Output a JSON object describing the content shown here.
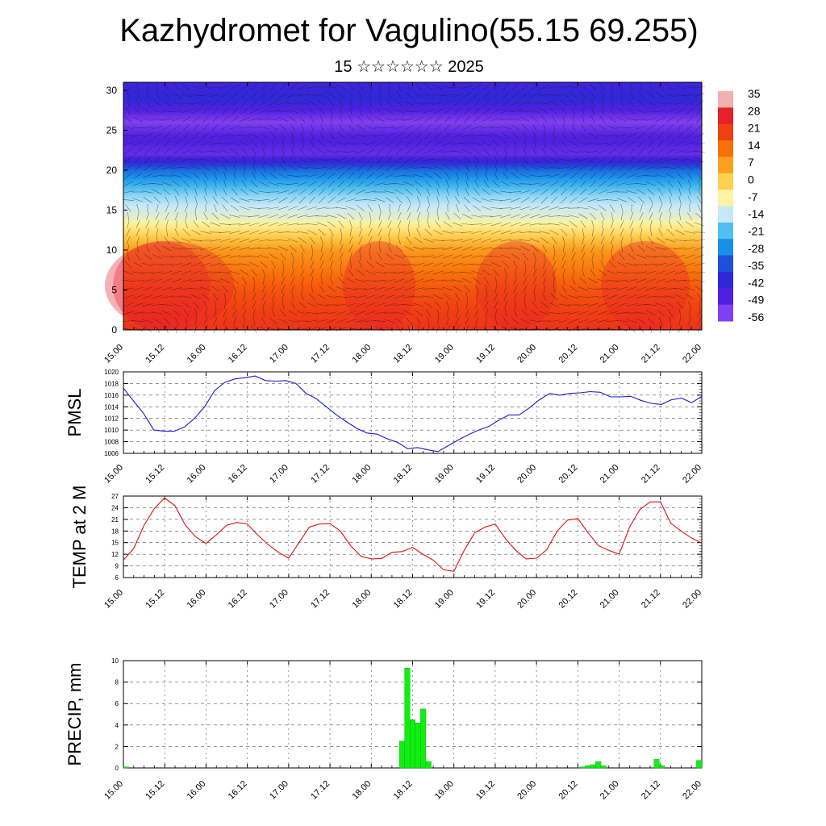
{
  "header": {
    "title": "Kazhydromet for Vagulino(55.15 69.255)",
    "subtitle": "15 ☆☆☆☆☆☆ 2025"
  },
  "time_labels": [
    "15.00",
    "15.12",
    "16.00",
    "16.12",
    "17.00",
    "17.12",
    "18.00",
    "18.12",
    "19.00",
    "19.12",
    "20.00",
    "20.12",
    "21.00",
    "21.12",
    "22.00"
  ],
  "chart_data": [
    {
      "type": "heatmap",
      "name": "cross-section",
      "y_ticks": [
        0,
        5,
        10,
        15,
        20,
        25,
        30
      ],
      "ylim": [
        0,
        31
      ],
      "colorbar_labels": [
        "35",
        "28",
        "21",
        "14",
        "7",
        "0",
        "-7",
        "-14",
        "-21",
        "-28",
        "-35",
        "-42",
        "-49",
        "-56"
      ],
      "colorbar_colors": [
        "#f2b0b0",
        "#e8202a",
        "#f04012",
        "#f8700a",
        "#fca020",
        "#fdd050",
        "#fdf3a0",
        "#c8e8f8",
        "#50c0f0",
        "#1890e8",
        "#2050d8",
        "#3028d8",
        "#5020e0",
        "#8040f0"
      ],
      "temp_profile_c": [
        [
          0,
          24
        ],
        [
          5,
          18
        ],
        [
          10,
          8
        ],
        [
          14,
          -10
        ],
        [
          17,
          -18
        ],
        [
          20,
          -32
        ],
        [
          22,
          -52
        ],
        [
          24,
          -48
        ],
        [
          26,
          -56
        ],
        [
          29,
          -42
        ],
        [
          31,
          -45
        ]
      ]
    },
    {
      "type": "line",
      "name": "pmsl",
      "ylabel": "PMSL",
      "ylim": [
        1006,
        1020
      ],
      "y_ticks": [
        1006,
        1008,
        1010,
        1012,
        1014,
        1016,
        1018,
        1020
      ],
      "color": "#1c1ccc",
      "values": [
        1017.2,
        1015.0,
        1012.8,
        1010.0,
        1009.8,
        1009.8,
        1010.5,
        1012.0,
        1014.0,
        1016.8,
        1018.2,
        1018.8,
        1019.0,
        1019.3,
        1018.5,
        1018.4,
        1018.5,
        1018.0,
        1016.3,
        1015.4,
        1014.0,
        1012.6,
        1011.4,
        1010.3,
        1009.5,
        1009.3,
        1008.5,
        1007.9,
        1006.8,
        1007.0,
        1006.6,
        1006.3,
        1007.3,
        1008.3,
        1009.2,
        1010.0,
        1010.6,
        1011.7,
        1012.6,
        1012.6,
        1013.8,
        1015.2,
        1016.3,
        1016.0,
        1016.3,
        1016.4,
        1016.6,
        1016.5,
        1015.7,
        1015.7,
        1015.8,
        1015.1,
        1014.6,
        1014.4,
        1015.2,
        1015.5,
        1014.7,
        1015.8
      ]
    },
    {
      "type": "line",
      "name": "temp2m",
      "ylabel": "TEMP at 2 M",
      "ylim": [
        6,
        27
      ],
      "y_ticks": [
        6,
        9,
        12,
        15,
        18,
        21,
        24,
        27
      ],
      "color": "#dd1111",
      "values": [
        10.5,
        13.5,
        19.5,
        23.8,
        26.5,
        24.5,
        19.5,
        16.5,
        14.8,
        17.0,
        19.5,
        20.2,
        19.8,
        17.0,
        14.5,
        12.5,
        11.0,
        15.0,
        19.0,
        19.8,
        19.9,
        18.0,
        14.2,
        11.5,
        10.8,
        10.9,
        12.5,
        12.7,
        13.8,
        12.0,
        10.5,
        8.0,
        7.6,
        13.0,
        17.5,
        19.0,
        19.8,
        16.0,
        13.0,
        10.8,
        11.0,
        13.2,
        18.0,
        20.8,
        21.2,
        17.5,
        14.2,
        13.0,
        12.0,
        19.0,
        23.5,
        25.5,
        25.5,
        20.0,
        18.0,
        16.2,
        14.9
      ]
    },
    {
      "type": "bar",
      "name": "precip",
      "ylabel": "PRECIP, mm",
      "ylim": [
        0,
        10
      ],
      "y_ticks": [
        0,
        2,
        4,
        6,
        8,
        10
      ],
      "color": "#11ee11",
      "values": [
        0.1,
        0,
        0,
        0,
        0,
        0,
        0,
        0,
        0,
        0,
        0,
        0,
        0,
        0,
        0,
        0,
        0,
        0,
        0,
        0,
        0,
        0,
        0,
        0,
        0,
        0,
        0,
        0,
        0,
        0,
        0,
        0,
        0,
        0,
        0,
        0,
        0,
        0,
        0,
        0,
        0,
        0,
        0,
        0,
        0,
        0,
        0,
        0,
        0,
        0,
        0,
        0,
        2.5,
        9.3,
        4.5,
        4.2,
        5.5,
        0.6,
        0,
        0,
        0,
        0,
        0,
        0,
        0,
        0,
        0,
        0,
        0,
        0,
        0,
        0,
        0,
        0,
        0,
        0,
        0,
        0,
        0,
        0,
        0,
        0,
        0,
        0,
        0,
        0,
        0.1,
        0.2,
        0.3,
        0.6,
        0.2,
        0,
        0,
        0,
        0,
        0,
        0,
        0,
        0,
        0,
        0.8,
        0.2,
        0,
        0,
        0,
        0,
        0,
        0,
        0.7
      ]
    }
  ]
}
